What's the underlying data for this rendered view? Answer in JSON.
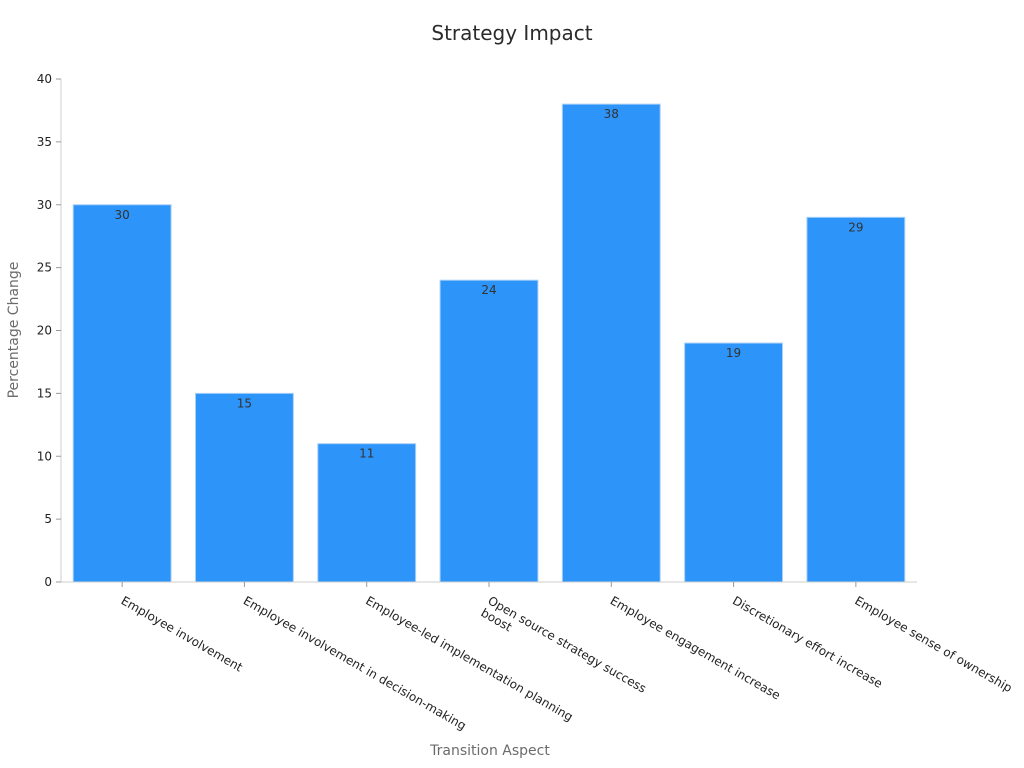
{
  "chart_data": {
    "type": "bar",
    "title": "Strategy Impact",
    "xlabel": "Transition Aspect",
    "ylabel": "Percentage Change",
    "categories": [
      "Employee involvement",
      "Employee involvement in decision-making",
      "Employee-led implementation planning",
      "Open source strategy success boost",
      "Employee engagement increase",
      "Discretionary effort increase",
      "Employee sense of ownership"
    ],
    "category_lines": [
      [
        "Employee involvement"
      ],
      [
        "Employee involvement in decision-making"
      ],
      [
        "Employee-led implementation planning"
      ],
      [
        "Open source strategy success",
        "boost"
      ],
      [
        "Employee engagement increase"
      ],
      [
        "Discretionary effort increase"
      ],
      [
        "Employee sense of ownership"
      ]
    ],
    "values": [
      30,
      15,
      11,
      24,
      38,
      19,
      29
    ],
    "ylim": [
      0,
      40
    ],
    "yticks": [
      0,
      5,
      10,
      15,
      20,
      25,
      30,
      35,
      40
    ],
    "grid": false,
    "legend": "none",
    "bar_color": "#2d94f9"
  }
}
